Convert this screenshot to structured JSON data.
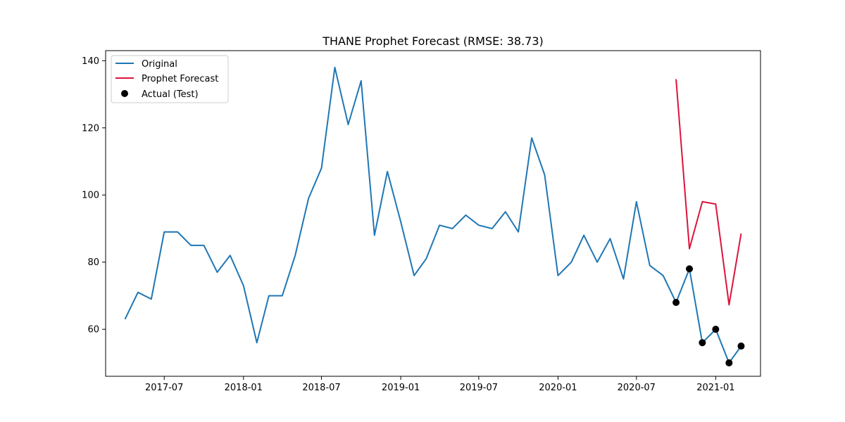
{
  "chart_data": {
    "type": "line",
    "title": "THANE Prophet Forecast (RMSE: 38.73)",
    "xlabel": "",
    "ylabel": "",
    "x_tick_labels": [
      "2017-07",
      "2018-01",
      "2018-07",
      "2019-01",
      "2019-07",
      "2020-01",
      "2020-07",
      "2021-01"
    ],
    "y_ticks": [
      60,
      80,
      100,
      120,
      140
    ],
    "ylim": [
      46,
      143
    ],
    "xlim": [
      "2017-02-15",
      "2021-04-15"
    ],
    "grid": false,
    "legend_position": "top-left",
    "colors": {
      "original": "#1f77b4",
      "forecast": "#dc143c",
      "actual": "#000000"
    },
    "series": [
      {
        "name": "Original",
        "style": "line",
        "x": [
          "2017-04-01",
          "2017-05-01",
          "2017-06-01",
          "2017-07-01",
          "2017-08-01",
          "2017-09-01",
          "2017-10-01",
          "2017-11-01",
          "2017-12-01",
          "2018-01-01",
          "2018-02-01",
          "2018-03-01",
          "2018-04-01",
          "2018-05-01",
          "2018-06-01",
          "2018-07-01",
          "2018-08-01",
          "2018-09-01",
          "2018-10-01",
          "2018-11-01",
          "2018-12-01",
          "2019-01-01",
          "2019-02-01",
          "2019-03-01",
          "2019-04-01",
          "2019-05-01",
          "2019-06-01",
          "2019-07-01",
          "2019-08-01",
          "2019-09-01",
          "2019-10-01",
          "2019-11-01",
          "2019-12-01",
          "2020-01-01",
          "2020-02-01",
          "2020-03-01",
          "2020-04-01",
          "2020-05-01",
          "2020-06-01",
          "2020-07-01",
          "2020-08-01",
          "2020-09-01",
          "2020-10-01",
          "2020-11-01",
          "2020-12-01",
          "2021-01-01",
          "2021-02-01",
          "2021-03-01"
        ],
        "values": [
          63,
          71,
          69,
          89,
          89,
          85,
          85,
          77,
          82,
          73,
          56,
          70,
          70,
          82,
          99,
          108,
          138,
          121,
          134,
          88,
          107,
          92,
          76,
          81,
          91,
          90,
          94,
          91,
          90,
          95,
          89,
          117,
          106,
          76,
          80,
          88,
          80,
          87,
          75,
          98,
          79,
          76,
          68,
          78,
          56,
          60,
          50,
          55
        ]
      },
      {
        "name": "Prophet Forecast",
        "style": "line",
        "x": [
          "2020-10-01",
          "2020-11-01",
          "2020-12-01",
          "2021-01-01",
          "2021-02-01",
          "2021-03-01"
        ],
        "values": [
          134.5,
          84,
          98,
          97.3,
          67.3,
          88.5
        ]
      },
      {
        "name": "Actual (Test)",
        "style": "scatter",
        "x": [
          "2020-10-01",
          "2020-11-01",
          "2020-12-01",
          "2021-01-01",
          "2021-02-01",
          "2021-03-01"
        ],
        "values": [
          68,
          78,
          56,
          60,
          50,
          55
        ]
      }
    ]
  }
}
